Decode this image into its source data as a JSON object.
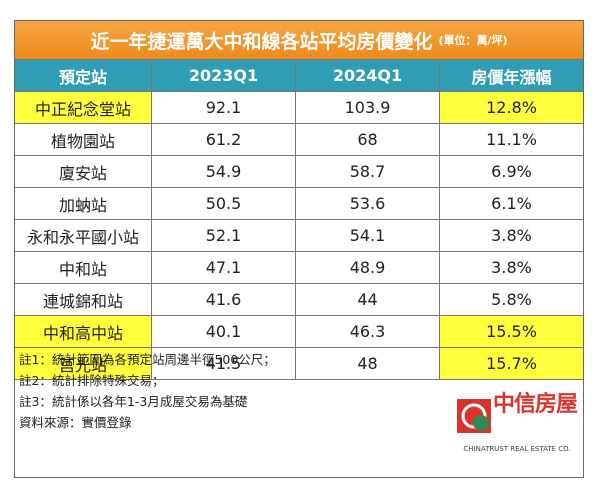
{
  "title": "近一年捷運萬大中和線各站平均房價變化",
  "unit": "(單位：萬/坪)",
  "table": {
    "header": [
      "預定站",
      "2023Q1",
      "2024Q1",
      "房價年漲幅"
    ],
    "highlight_color": "#ffff3c",
    "rows": [
      {
        "cells": [
          "中正紀念堂站",
          "92.1",
          "103.9",
          "12.8%"
        ],
        "highlight": true
      },
      {
        "cells": [
          "植物園站",
          "61.2",
          "68",
          "11.1%"
        ],
        "highlight": false
      },
      {
        "cells": [
          "廈安站",
          "54.9",
          "58.7",
          "6.9%"
        ],
        "highlight": false
      },
      {
        "cells": [
          "加蚋站",
          "50.5",
          "53.6",
          "6.1%"
        ],
        "highlight": false
      },
      {
        "cells": [
          "永和永平國小站",
          "52.1",
          "54.1",
          "3.8%"
        ],
        "highlight": false
      },
      {
        "cells": [
          "中和站",
          "47.1",
          "48.9",
          "3.8%"
        ],
        "highlight": false
      },
      {
        "cells": [
          "連城錦和站",
          "41.6",
          "44",
          "5.8%"
        ],
        "highlight": false
      },
      {
        "cells": [
          "中和高中站",
          "40.1",
          "46.3",
          "15.5%"
        ],
        "highlight": true
      },
      {
        "cells": [
          "莒光站",
          "41.5",
          "48",
          "15.7%"
        ],
        "highlight": true
      }
    ]
  },
  "notes": [
    "註1：統計範圍為各預定站周邊半徑500公尺；",
    "註2：統計排除特殊交易；",
    "註3：統計係以各年1-3月成屋交易為基礎",
    "資料來源：實價登錄"
  ],
  "logo": {
    "name": "中信房屋",
    "english": "CHINATRUST REAL ESTATE CO."
  }
}
